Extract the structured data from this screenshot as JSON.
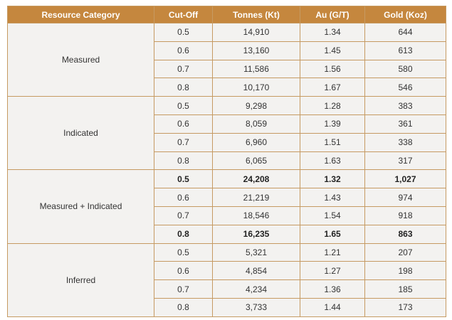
{
  "table": {
    "columns": [
      "Resource Category",
      "Cut-Off",
      "Tonnes (Kt)",
      "Au (G/T)",
      "Gold (Koz)"
    ],
    "groups": [
      {
        "category": "Measured",
        "rows": [
          {
            "cells": [
              "0.5",
              "14,910",
              "1.34",
              "644"
            ]
          },
          {
            "cells": [
              "0.6",
              "13,160",
              "1.45",
              "613"
            ]
          },
          {
            "cells": [
              "0.7",
              "11,586",
              "1.56",
              "580"
            ]
          },
          {
            "cells": [
              "0.8",
              "10,170",
              "1.67",
              "546"
            ]
          }
        ]
      },
      {
        "category": "Indicated",
        "rows": [
          {
            "cells": [
              "0.5",
              "9,298",
              "1.28",
              "383"
            ]
          },
          {
            "cells": [
              "0.6",
              "8,059",
              "1.39",
              "361"
            ]
          },
          {
            "cells": [
              "0.7",
              "6,960",
              "1.51",
              "338"
            ]
          },
          {
            "cells": [
              "0.8",
              "6,065",
              "1.63",
              "317"
            ]
          }
        ]
      },
      {
        "category": "Measured + Indicated",
        "rows": [
          {
            "cells": [
              "0.5",
              "24,208",
              "1.32",
              "1,027"
            ],
            "bold": true
          },
          {
            "cells": [
              "0.6",
              "21,219",
              "1.43",
              "974"
            ]
          },
          {
            "cells": [
              "0.7",
              "18,546",
              "1.54",
              "918"
            ]
          },
          {
            "cells": [
              "0.8",
              "16,235",
              "1.65",
              "863"
            ],
            "bold": true
          }
        ]
      },
      {
        "category": "Inferred",
        "rows": [
          {
            "cells": [
              "0.5",
              "5,321",
              "1.21",
              "207"
            ]
          },
          {
            "cells": [
              "0.6",
              "4,854",
              "1.27",
              "198"
            ]
          },
          {
            "cells": [
              "0.7",
              "4,234",
              "1.36",
              "185"
            ]
          },
          {
            "cells": [
              "0.8",
              "3,733",
              "1.44",
              "173"
            ]
          }
        ]
      }
    ]
  }
}
